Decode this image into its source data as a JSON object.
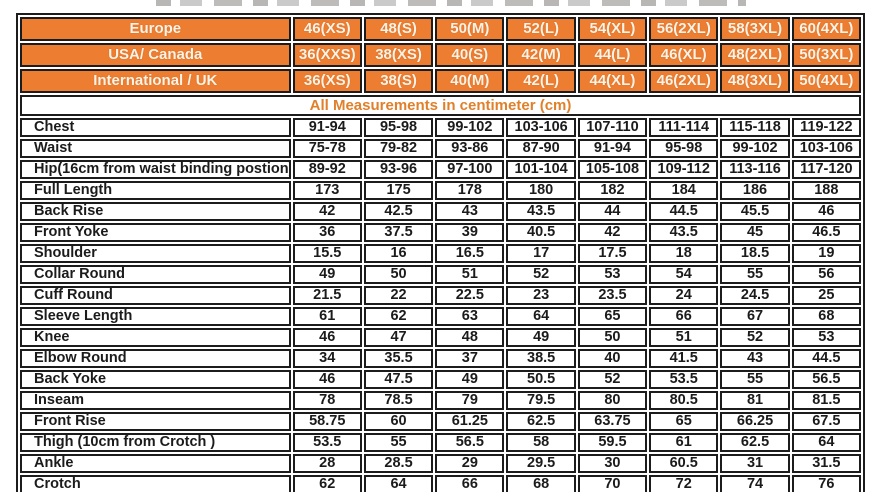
{
  "chart_data": {
    "type": "table",
    "title": "All Measurements in centimeter (cm)",
    "header_rows": [
      {
        "label": "Europe",
        "sizes": [
          "46(XS)",
          "48(S)",
          "50(M)",
          "52(L)",
          "54(XL)",
          "56(2XL)",
          "58(3XL)",
          "60(4XL)"
        ]
      },
      {
        "label": "USA/ Canada",
        "sizes": [
          "36(XXS)",
          "38(XS)",
          "40(S)",
          "42(M)",
          "44(L)",
          "46(XL)",
          "48(2XL)",
          "50(3XL)"
        ]
      },
      {
        "label": "International / UK",
        "sizes": [
          "36(XS)",
          "38(S)",
          "40(M)",
          "42(L)",
          "44(XL)",
          "46(2XL)",
          "48(3XL)",
          "50(4XL)"
        ]
      }
    ],
    "rows": [
      {
        "label": "Chest",
        "values": [
          "91-94",
          "95-98",
          "99-102",
          "103-106",
          "107-110",
          "111-114",
          "115-118",
          "119-122"
        ]
      },
      {
        "label": "Waist",
        "values": [
          "75-78",
          "79-82",
          "93-86",
          "87-90",
          "91-94",
          "95-98",
          "99-102",
          "103-106"
        ]
      },
      {
        "label": "Hip(16cm from waist binding postion)",
        "values": [
          "89-92",
          "93-96",
          "97-100",
          "101-104",
          "105-108",
          "109-112",
          "113-116",
          "117-120"
        ]
      },
      {
        "label": "Full Length",
        "values": [
          "173",
          "175",
          "178",
          "180",
          "182",
          "184",
          "186",
          "188"
        ]
      },
      {
        "label": "Back Rise",
        "values": [
          "42",
          "42.5",
          "43",
          "43.5",
          "44",
          "44.5",
          "45.5",
          "46"
        ]
      },
      {
        "label": "Front Yoke",
        "values": [
          "36",
          "37.5",
          "39",
          "40.5",
          "42",
          "43.5",
          "45",
          "46.5"
        ]
      },
      {
        "label": "Shoulder",
        "values": [
          "15.5",
          "16",
          "16.5",
          "17",
          "17.5",
          "18",
          "18.5",
          "19"
        ]
      },
      {
        "label": "Collar Round",
        "values": [
          "49",
          "50",
          "51",
          "52",
          "53",
          "54",
          "55",
          "56"
        ]
      },
      {
        "label": "Cuff Round",
        "values": [
          "21.5",
          "22",
          "22.5",
          "23",
          "23.5",
          "24",
          "24.5",
          "25"
        ]
      },
      {
        "label": "Sleeve Length",
        "values": [
          "61",
          "62",
          "63",
          "64",
          "65",
          "66",
          "67",
          "68"
        ]
      },
      {
        "label": "Knee",
        "values": [
          "46",
          "47",
          "48",
          "49",
          "50",
          "51",
          "52",
          "53"
        ]
      },
      {
        "label": "Elbow Round",
        "values": [
          "34",
          "35.5",
          "37",
          "38.5",
          "40",
          "41.5",
          "43",
          "44.5"
        ]
      },
      {
        "label": "Back Yoke",
        "values": [
          "46",
          "47.5",
          "49",
          "50.5",
          "52",
          "53.5",
          "55",
          "56.5"
        ]
      },
      {
        "label": "Inseam",
        "values": [
          "78",
          "78.5",
          "79",
          "79.5",
          "80",
          "80.5",
          "81",
          "81.5"
        ]
      },
      {
        "label": "Front Rise",
        "values": [
          "58.75",
          "60",
          "61.25",
          "62.5",
          "63.75",
          "65",
          "66.25",
          "67.5"
        ]
      },
      {
        "label": "Thigh (10cm from Crotch )",
        "values": [
          "53.5",
          "55",
          "56.5",
          "58",
          "59.5",
          "61",
          "62.5",
          "64"
        ]
      },
      {
        "label": "Ankle",
        "values": [
          "28",
          "28.5",
          "29",
          "29.5",
          "30",
          "60.5",
          "31",
          "31.5"
        ]
      },
      {
        "label": "Crotch",
        "values": [
          "62",
          "64",
          "66",
          "68",
          "70",
          "72",
          "74",
          "76"
        ]
      }
    ],
    "layout_hints": {
      "columns": 9,
      "header_fill": "#ED7D31",
      "header_text_color": "#FBF3E6",
      "note_text_color": "#E0802A",
      "border_color": "#1C1C1C",
      "cell_text_color": "#1B1B1B",
      "grid": true
    }
  }
}
